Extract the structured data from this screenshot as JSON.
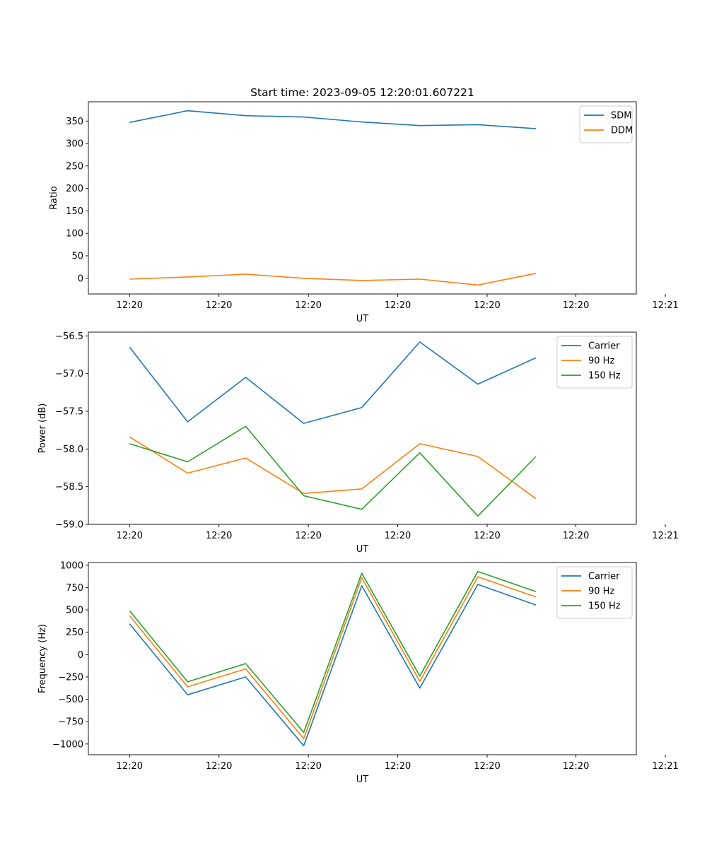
{
  "title": "Start time: 2023-09-05 12:20:01.607221",
  "colors": {
    "blue": "#1f77b4",
    "orange": "#ff7f0e",
    "green": "#2ca02c"
  },
  "chart_data": [
    {
      "type": "line",
      "xlabel": "UT",
      "ylabel": "Ratio",
      "x_tick_labels": [
        "12:20",
        "12:20",
        "12:20",
        "12:20",
        "12:20",
        "12:20",
        "12:21"
      ],
      "x": [
        0,
        1,
        2,
        3,
        4,
        5,
        6,
        7
      ],
      "xlim": [
        -0.71,
        8.73
      ],
      "ylim": [
        -35,
        393
      ],
      "y_ticks": [
        0,
        50,
        100,
        150,
        200,
        250,
        300,
        350
      ],
      "legend_location": "top-right",
      "series": [
        {
          "name": "SDM",
          "color": "#1f77b4",
          "values": [
            347,
            373,
            362,
            359,
            348,
            340,
            342,
            333
          ]
        },
        {
          "name": "DDM",
          "color": "#ff7f0e",
          "values": [
            -2,
            3,
            9,
            0,
            -5,
            -2,
            -15,
            11
          ]
        }
      ]
    },
    {
      "type": "line",
      "xlabel": "UT",
      "ylabel": "Power (dB)",
      "x_tick_labels": [
        "12:20",
        "12:20",
        "12:20",
        "12:20",
        "12:20",
        "12:20",
        "12:21"
      ],
      "x": [
        0,
        1,
        2,
        3,
        4,
        5,
        6,
        7
      ],
      "xlim": [
        -0.71,
        8.73
      ],
      "ylim": [
        -59.0,
        -56.45
      ],
      "y_ticks": [
        -59.0,
        -58.5,
        -58.0,
        -57.5,
        -57.0,
        -56.5
      ],
      "y_tick_labels": [
        "−59.0",
        "−58.5",
        "−58.0",
        "−57.5",
        "−57.0",
        "−56.5"
      ],
      "legend_location": "top-right",
      "series": [
        {
          "name": "Carrier",
          "color": "#1f77b4",
          "values": [
            -56.65,
            -57.64,
            -57.05,
            -57.66,
            -57.45,
            -56.58,
            -57.14,
            -56.79
          ]
        },
        {
          "name": "90 Hz",
          "color": "#ff7f0e",
          "values": [
            -57.84,
            -58.32,
            -58.12,
            -58.59,
            -58.53,
            -57.93,
            -58.1,
            -58.66
          ]
        },
        {
          "name": "150 Hz",
          "color": "#2ca02c",
          "values": [
            -57.93,
            -58.17,
            -57.7,
            -58.62,
            -58.8,
            -58.05,
            -58.89,
            -58.1
          ]
        }
      ]
    },
    {
      "type": "line",
      "xlabel": "UT",
      "ylabel": "Frequency (Hz)",
      "x_tick_labels": [
        "12:20",
        "12:20",
        "12:20",
        "12:20",
        "12:20",
        "12:20",
        "12:21"
      ],
      "x": [
        0,
        1,
        2,
        3,
        4,
        5,
        6,
        7
      ],
      "xlim": [
        -0.71,
        8.73
      ],
      "ylim": [
        -1120,
        1030
      ],
      "y_ticks": [
        -1000,
        -750,
        -500,
        -250,
        0,
        250,
        500,
        750,
        1000
      ],
      "y_tick_labels": [
        "−1000",
        "−750",
        "−500",
        "−250",
        "0",
        "250",
        "500",
        "750",
        "1000"
      ],
      "legend_location": "top-right",
      "series": [
        {
          "name": "Carrier",
          "color": "#1f77b4",
          "values": [
            345,
            -450,
            -250,
            -1020,
            770,
            -375,
            785,
            555
          ]
        },
        {
          "name": "90 Hz",
          "color": "#ff7f0e",
          "values": [
            435,
            -360,
            -160,
            -940,
            860,
            -300,
            870,
            645
          ]
        },
        {
          "name": "150 Hz",
          "color": "#2ca02c",
          "values": [
            490,
            -305,
            -100,
            -870,
            910,
            -240,
            930,
            705
          ]
        }
      ]
    }
  ]
}
